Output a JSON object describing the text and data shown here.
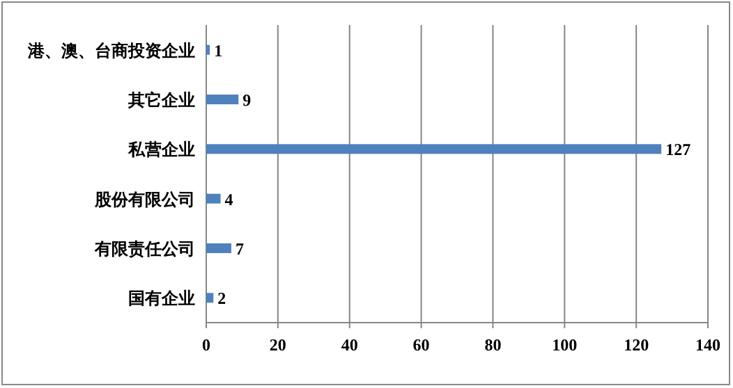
{
  "chart_data": {
    "type": "bar",
    "orientation": "horizontal",
    "categories": [
      "港、澳、台商投资企业",
      "其它企业",
      "私营企业",
      "股份有限公司",
      "有限责任公司",
      "国有企业"
    ],
    "values": [
      1,
      9,
      127,
      4,
      7,
      2
    ],
    "color": "#4f81bd",
    "xlim": [
      0,
      140
    ],
    "xticks": [
      0,
      20,
      40,
      60,
      80,
      100,
      120,
      140
    ],
    "grid": "x",
    "data_labels": true
  }
}
